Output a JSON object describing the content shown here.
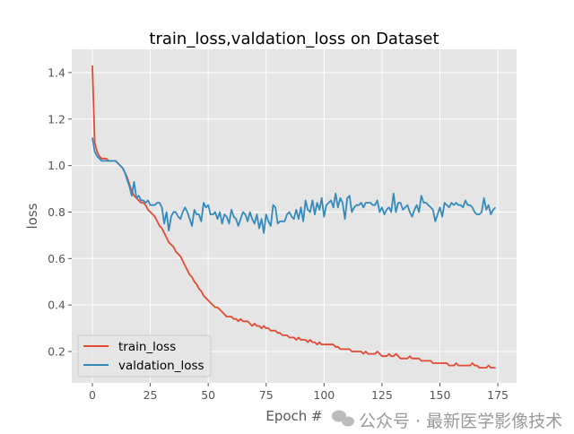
{
  "chart_data": {
    "type": "line",
    "title": "train_loss,valdation_loss on Dataset",
    "xlabel": "Epoch #",
    "ylabel": "loss",
    "xlim": [
      -8.9,
      183.1
    ],
    "ylim": [
      0.065,
      1.5
    ],
    "xticks": [
      0,
      25,
      50,
      75,
      100,
      125,
      150,
      175
    ],
    "yticks": [
      0.2,
      0.4,
      0.6,
      0.8,
      1.0,
      1.2,
      1.4
    ],
    "grid": true,
    "legend_position": "lower-left",
    "series": [
      {
        "name": "train_loss",
        "color": "#E24A33",
        "values": [
          1.43,
          1.1,
          1.06,
          1.04,
          1.03,
          1.03,
          1.03,
          1.02,
          1.02,
          1.02,
          1.02,
          1.01,
          1.0,
          0.99,
          0.97,
          0.95,
          0.92,
          0.89,
          0.87,
          0.86,
          0.85,
          0.84,
          0.84,
          0.83,
          0.81,
          0.8,
          0.79,
          0.78,
          0.76,
          0.74,
          0.73,
          0.71,
          0.69,
          0.67,
          0.66,
          0.65,
          0.63,
          0.62,
          0.61,
          0.59,
          0.57,
          0.55,
          0.53,
          0.52,
          0.5,
          0.49,
          0.47,
          0.46,
          0.44,
          0.43,
          0.42,
          0.41,
          0.4,
          0.39,
          0.39,
          0.38,
          0.37,
          0.36,
          0.35,
          0.35,
          0.35,
          0.34,
          0.34,
          0.33,
          0.34,
          0.33,
          0.33,
          0.33,
          0.32,
          0.31,
          0.32,
          0.31,
          0.31,
          0.3,
          0.31,
          0.3,
          0.3,
          0.29,
          0.29,
          0.29,
          0.28,
          0.28,
          0.27,
          0.27,
          0.27,
          0.26,
          0.26,
          0.26,
          0.25,
          0.26,
          0.25,
          0.25,
          0.25,
          0.24,
          0.25,
          0.24,
          0.24,
          0.23,
          0.24,
          0.23,
          0.23,
          0.23,
          0.23,
          0.23,
          0.23,
          0.22,
          0.22,
          0.21,
          0.21,
          0.21,
          0.21,
          0.21,
          0.2,
          0.2,
          0.2,
          0.2,
          0.2,
          0.19,
          0.2,
          0.19,
          0.19,
          0.19,
          0.19,
          0.2,
          0.19,
          0.18,
          0.18,
          0.18,
          0.19,
          0.18,
          0.18,
          0.19,
          0.18,
          0.17,
          0.17,
          0.17,
          0.17,
          0.18,
          0.17,
          0.17,
          0.17,
          0.17,
          0.16,
          0.16,
          0.16,
          0.16,
          0.16,
          0.15,
          0.15,
          0.15,
          0.15,
          0.15,
          0.15,
          0.15,
          0.14,
          0.14,
          0.14,
          0.15,
          0.14,
          0.14,
          0.14,
          0.14,
          0.14,
          0.14,
          0.15,
          0.14,
          0.14,
          0.13,
          0.13,
          0.13,
          0.13,
          0.14,
          0.13,
          0.13,
          0.13
        ]
      },
      {
        "name": "valdation_loss",
        "color": "#348ABD",
        "values": [
          1.12,
          1.06,
          1.04,
          1.03,
          1.02,
          1.02,
          1.02,
          1.02,
          1.02,
          1.02,
          1.02,
          1.01,
          1.0,
          0.99,
          0.97,
          0.94,
          0.91,
          0.87,
          0.93,
          0.86,
          0.87,
          0.85,
          0.85,
          0.84,
          0.85,
          0.83,
          0.83,
          0.83,
          0.84,
          0.84,
          0.82,
          0.75,
          0.8,
          0.72,
          0.78,
          0.8,
          0.8,
          0.78,
          0.77,
          0.8,
          0.82,
          0.8,
          0.77,
          0.74,
          0.81,
          0.79,
          0.79,
          0.76,
          0.84,
          0.82,
          0.83,
          0.79,
          0.79,
          0.8,
          0.77,
          0.8,
          0.75,
          0.79,
          0.78,
          0.75,
          0.81,
          0.78,
          0.77,
          0.74,
          0.77,
          0.8,
          0.79,
          0.76,
          0.8,
          0.77,
          0.75,
          0.79,
          0.73,
          0.77,
          0.71,
          0.79,
          0.76,
          0.74,
          0.83,
          0.82,
          0.75,
          0.76,
          0.76,
          0.76,
          0.79,
          0.8,
          0.78,
          0.77,
          0.81,
          0.77,
          0.82,
          0.76,
          0.85,
          0.81,
          0.8,
          0.85,
          0.79,
          0.84,
          0.81,
          0.86,
          0.78,
          0.83,
          0.84,
          0.85,
          0.82,
          0.88,
          0.82,
          0.86,
          0.84,
          0.77,
          0.86,
          0.87,
          0.8,
          0.82,
          0.83,
          0.83,
          0.84,
          0.82,
          0.84,
          0.84,
          0.84,
          0.83,
          0.83,
          0.85,
          0.8,
          0.82,
          0.79,
          0.81,
          0.82,
          0.8,
          0.88,
          0.8,
          0.84,
          0.84,
          0.81,
          0.82,
          0.83,
          0.8,
          0.78,
          0.81,
          0.83,
          0.8,
          0.87,
          0.84,
          0.84,
          0.83,
          0.82,
          0.81,
          0.76,
          0.79,
          0.82,
          0.78,
          0.84,
          0.83,
          0.82,
          0.84,
          0.83,
          0.84,
          0.83,
          0.83,
          0.82,
          0.85,
          0.83,
          0.83,
          0.82,
          0.8,
          0.79,
          0.79,
          0.8,
          0.86,
          0.81,
          0.83,
          0.79,
          0.81,
          0.82
        ]
      }
    ],
    "background_color": "#E5E5E5",
    "grid_color": "#FFFFFF"
  },
  "watermark": "公众号 · 最新医学影像技术"
}
